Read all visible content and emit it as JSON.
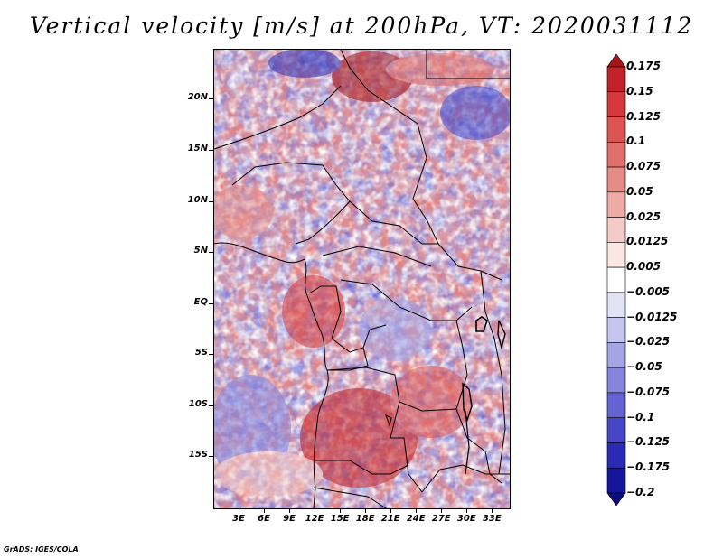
{
  "title": "Vertical velocity [m/s] at 200hPa, VT: 2020031112",
  "credit": "GrADS: IGES/COLA",
  "y_axis": {
    "ticks": [
      {
        "label": "20N",
        "lat": 20
      },
      {
        "label": "15N",
        "lat": 15
      },
      {
        "label": "10N",
        "lat": 10
      },
      {
        "label": "5N",
        "lat": 5
      },
      {
        "label": "EQ",
        "lat": 0
      },
      {
        "label": "5S",
        "lat": -5
      },
      {
        "label": "10S",
        "lat": -10
      },
      {
        "label": "15S",
        "lat": -15
      }
    ],
    "lat_min": -20,
    "lat_max": 24.9
  },
  "x_axis": {
    "ticks": [
      {
        "label": "3E",
        "lon": 3
      },
      {
        "label": "6E",
        "lon": 6
      },
      {
        "label": "9E",
        "lon": 9
      },
      {
        "label": "12E",
        "lon": 12
      },
      {
        "label": "15E",
        "lon": 15
      },
      {
        "label": "18E",
        "lon": 18
      },
      {
        "label": "21E",
        "lon": 21
      },
      {
        "label": "24E",
        "lon": 24
      },
      {
        "label": "27E",
        "lon": 27
      },
      {
        "label": "30E",
        "lon": 30
      },
      {
        "label": "33E",
        "lon": 33
      }
    ],
    "lon_min": 0,
    "lon_max": 35
  },
  "colorbar": {
    "levels": [
      "0.175",
      "0.15",
      "0.125",
      "0.1",
      "0.075",
      "0.05",
      "0.025",
      "0.0125",
      "0.005",
      "-0.005",
      "-0.0125",
      "-0.025",
      "-0.05",
      "-0.075",
      "-0.1",
      "-0.125",
      "-0.175",
      "-0.2"
    ],
    "colors": [
      "#a5151a",
      "#c22229",
      "#d43a3c",
      "#dc5553",
      "#e06f6a",
      "#e68c86",
      "#eeaaa5",
      "#f5cbc7",
      "#fbe6e3",
      "#ffffff",
      "#e2e2f5",
      "#c4c4ee",
      "#a5a5e5",
      "#8585dd",
      "#6363d3",
      "#4646c6",
      "#2a2ab4",
      "#15159b",
      "#0c0c80"
    ]
  }
}
